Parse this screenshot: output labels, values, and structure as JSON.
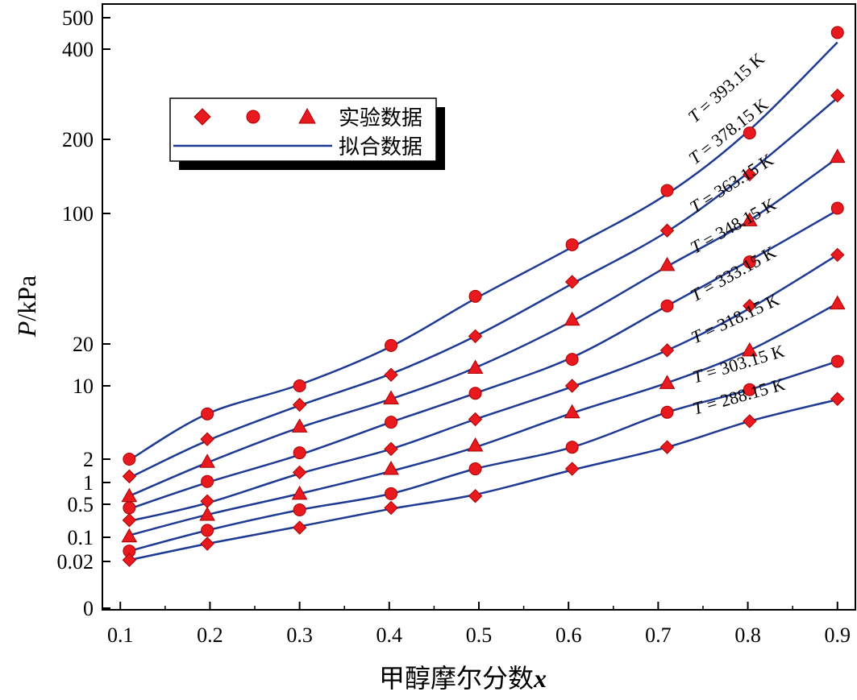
{
  "chart_data": {
    "type": "line",
    "xlabel": "甲醇摩尔分数",
    "xlabel_var": "x",
    "ylabel_var": "P",
    "ylabel_unit": "/kPa",
    "xlim": [
      0.08,
      0.92
    ],
    "x_ticks": [
      "0.1",
      "0.2",
      "0.3",
      "0.4",
      "0.5",
      "0.6",
      "0.7",
      "0.8",
      "0.9"
    ],
    "y_ticks": [
      {
        "label": "500",
        "value": 500
      },
      {
        "label": "400",
        "value": 400
      },
      {
        "label": "200",
        "value": 200
      },
      {
        "label": "100",
        "value": 100
      },
      {
        "label": "20",
        "value": 20
      },
      {
        "label": "10",
        "value": 10
      },
      {
        "label": "2",
        "value": 2
      },
      {
        "label": "1",
        "value": 1
      },
      {
        "label": "0.5",
        "value": 0.5
      },
      {
        "label": "0.1",
        "value": 0.1
      },
      {
        "label": "0.02",
        "value": 0.02
      },
      {
        "label": "0",
        "value": 0
      }
    ],
    "y_axis_note": "non-uniform tick spacing",
    "legend": {
      "position": "upper-left",
      "experimental_label": "实验数据",
      "fit_label": "拟合数据"
    },
    "colors": {
      "marker": "#e8191f",
      "line": "#1f3a93"
    },
    "x": [
      0.11,
      0.197,
      0.3,
      0.402,
      0.496,
      0.604,
      0.71,
      0.802,
      0.9
    ],
    "series": [
      {
        "name": "T = 393.15 K",
        "marker": "circle",
        "values": [
          2,
          5.4,
          10,
          19.5,
          36,
          68,
          124,
          210,
          450
        ],
        "fit": [
          1.95,
          5.4,
          10.2,
          19.2,
          35,
          66,
          120,
          215,
          420
        ]
      },
      {
        "name": "T = 378.15 K",
        "marker": "diamond",
        "values": [
          1.2,
          3.1,
          6.6,
          12,
          22,
          43,
          81,
          144,
          280
        ],
        "fit": [
          1.15,
          3.0,
          6.5,
          12.2,
          22,
          42,
          80,
          148,
          275
        ]
      },
      {
        "name": "T = 363.15 K",
        "marker": "triangle",
        "values": [
          0.65,
          1.85,
          4.1,
          7.6,
          13.5,
          27,
          53,
          92,
          170
        ],
        "fit": [
          0.65,
          1.8,
          4.0,
          7.5,
          13.5,
          26.5,
          52,
          92,
          168
        ]
      },
      {
        "name": "T = 348.15 K",
        "marker": "circle",
        "values": [
          0.42,
          1.03,
          2.3,
          4.5,
          8.5,
          15.5,
          32,
          55,
          105
        ],
        "fit": [
          0.4,
          1.0,
          2.2,
          4.5,
          8.5,
          16,
          32,
          56,
          103
        ]
      },
      {
        "name": "T = 333.15 K",
        "marker": "diamond",
        "values": [
          0.23,
          0.55,
          1.35,
          2.5,
          4.8,
          10,
          18,
          32,
          60
        ],
        "fit": [
          0.22,
          0.52,
          1.3,
          2.5,
          4.8,
          9.8,
          18,
          31,
          60
        ]
      },
      {
        "name": "T = 318.15 K",
        "marker": "triangle",
        "values": [
          0.105,
          0.3,
          0.7,
          1.5,
          2.7,
          5.6,
          10.5,
          18,
          33
        ],
        "fit": [
          0.11,
          0.3,
          0.7,
          1.4,
          2.6,
          5.5,
          10.5,
          18,
          33
        ]
      },
      {
        "name": "T = 303.15 K",
        "marker": "circle",
        "values": [
          0.04,
          0.14,
          0.38,
          0.7,
          1.5,
          2.6,
          5.6,
          9.2,
          15
        ]
      },
      {
        "name": "T = 288.15 K",
        "marker": "diamond",
        "values": [
          0.022,
          0.065,
          0.16,
          0.42,
          0.65,
          1.5,
          2.6,
          4.6,
          7.5
        ],
        "fit": [
          0.022,
          0.065,
          0.17,
          0.4,
          0.68,
          1.45,
          2.6,
          4.6,
          7.4
        ]
      }
    ]
  }
}
